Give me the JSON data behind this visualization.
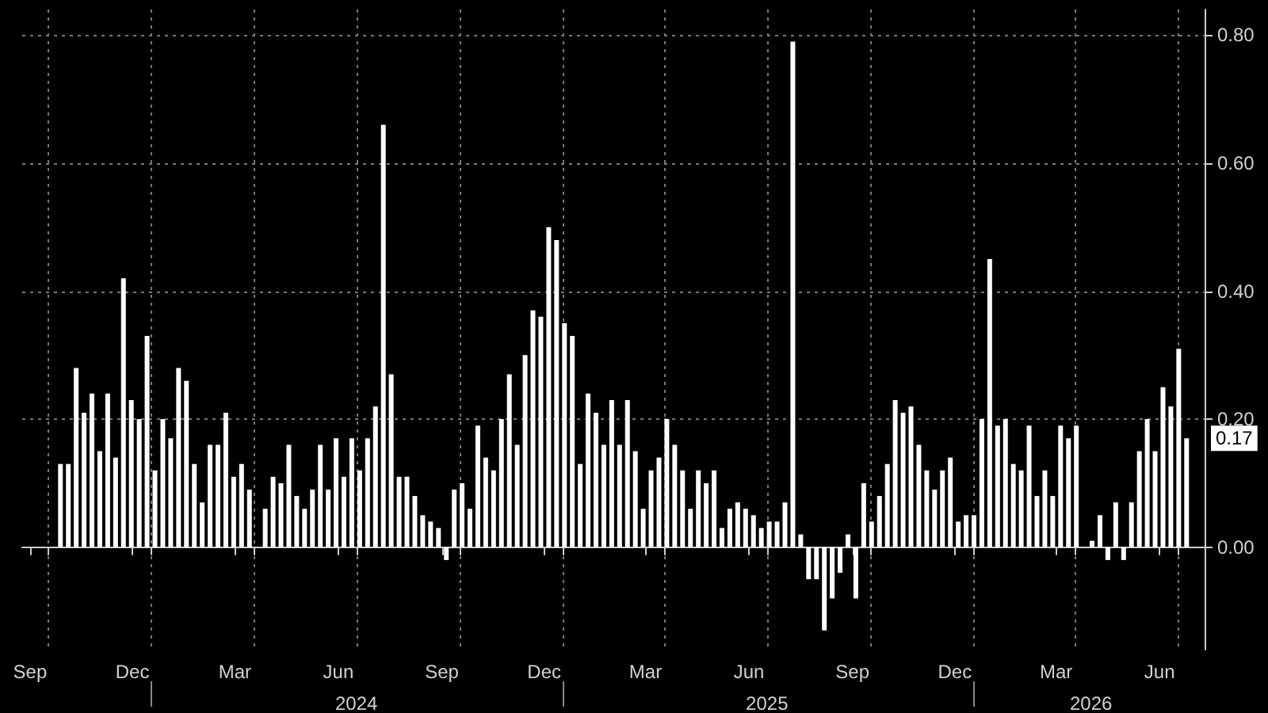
{
  "chart_data": {
    "type": "bar",
    "color": "#ffffff",
    "x": [
      "2023-10-12",
      "2023-10-19",
      "2023-10-26",
      "2023-11-02",
      "2023-11-09",
      "2023-11-16",
      "2023-11-23",
      "2023-11-30",
      "2023-12-07",
      "2023-12-14",
      "2023-12-21",
      "2023-12-28",
      "2024-01-04",
      "2024-01-11",
      "2024-01-18",
      "2024-01-25",
      "2024-02-01",
      "2024-02-08",
      "2024-02-15",
      "2024-02-22",
      "2024-02-29",
      "2024-03-07",
      "2024-03-14",
      "2024-03-21",
      "2024-03-28",
      "2024-04-04",
      "2024-04-11",
      "2024-04-18",
      "2024-04-25",
      "2024-05-02",
      "2024-05-09",
      "2024-05-16",
      "2024-05-23",
      "2024-05-30",
      "2024-06-06",
      "2024-06-13",
      "2024-06-20",
      "2024-06-27",
      "2024-07-04",
      "2024-07-11",
      "2024-07-18",
      "2024-07-25",
      "2024-08-01",
      "2024-08-08",
      "2024-08-15",
      "2024-08-22",
      "2024-08-29",
      "2024-09-05",
      "2024-09-12",
      "2024-09-19",
      "2024-09-26",
      "2024-10-03",
      "2024-10-10",
      "2024-10-17",
      "2024-10-24",
      "2024-10-31",
      "2024-11-07",
      "2024-11-14",
      "2024-11-21",
      "2024-11-28",
      "2024-12-05",
      "2024-12-12",
      "2024-12-19",
      "2024-12-26",
      "2025-01-02",
      "2025-01-09",
      "2025-01-16",
      "2025-01-23",
      "2025-01-30",
      "2025-02-06",
      "2025-02-13",
      "2025-02-20",
      "2025-02-27",
      "2025-03-06",
      "2025-03-13",
      "2025-03-20",
      "2025-03-27",
      "2025-04-03",
      "2025-04-10",
      "2025-04-17",
      "2025-04-24",
      "2025-05-01",
      "2025-05-08",
      "2025-05-15",
      "2025-05-22",
      "2025-05-29",
      "2025-06-05",
      "2025-06-12",
      "2025-06-19",
      "2025-06-26",
      "2025-07-03",
      "2025-07-10",
      "2025-07-17",
      "2025-07-24",
      "2025-07-31",
      "2025-08-07",
      "2025-08-14",
      "2025-08-21",
      "2025-08-28",
      "2025-09-04",
      "2025-09-11",
      "2025-09-18",
      "2025-09-25",
      "2025-10-02",
      "2025-10-09",
      "2025-10-16",
      "2025-10-23",
      "2025-10-30",
      "2025-11-06",
      "2025-11-13",
      "2025-11-20",
      "2025-11-27",
      "2025-12-04",
      "2025-12-11",
      "2025-12-18",
      "2025-12-25",
      "2026-01-01",
      "2026-01-08",
      "2026-01-15",
      "2026-01-22",
      "2026-01-29",
      "2026-02-05",
      "2026-02-12",
      "2026-02-19",
      "2026-02-26",
      "2026-03-05",
      "2026-03-12",
      "2026-03-19",
      "2026-03-26",
      "2026-04-02",
      "2026-04-09",
      "2026-04-16",
      "2026-04-23",
      "2026-04-30",
      "2026-05-07",
      "2026-05-14",
      "2026-05-21",
      "2026-05-28",
      "2026-06-04",
      "2026-06-11",
      "2026-06-18",
      "2026-06-25",
      "2026-07-02",
      "2026-07-09"
    ],
    "values": [
      0.13,
      0.13,
      0.28,
      0.21,
      0.24,
      0.15,
      0.24,
      0.14,
      0.42,
      0.23,
      0.2,
      0.33,
      0.12,
      0.2,
      0.17,
      0.28,
      0.26,
      0.13,
      0.07,
      0.16,
      0.16,
      0.21,
      0.11,
      0.13,
      0.09,
      0.0,
      0.06,
      0.11,
      0.1,
      0.16,
      0.08,
      0.06,
      0.09,
      0.16,
      0.09,
      0.17,
      0.11,
      0.17,
      0.12,
      0.17,
      0.22,
      0.66,
      0.27,
      0.11,
      0.11,
      0.08,
      0.05,
      0.04,
      0.03,
      -0.02,
      0.09,
      0.1,
      0.06,
      0.19,
      0.14,
      0.12,
      0.2,
      0.27,
      0.16,
      0.3,
      0.37,
      0.36,
      0.5,
      0.48,
      0.35,
      0.33,
      0.13,
      0.24,
      0.21,
      0.16,
      0.23,
      0.16,
      0.23,
      0.15,
      0.06,
      0.12,
      0.14,
      0.2,
      0.16,
      0.12,
      0.06,
      0.12,
      0.1,
      0.12,
      0.03,
      0.06,
      0.07,
      0.06,
      0.05,
      0.03,
      0.04,
      0.04,
      0.07,
      0.79,
      0.02,
      -0.05,
      -0.05,
      -0.13,
      -0.08,
      -0.04,
      0.02,
      -0.08,
      0.1,
      0.04,
      0.08,
      0.13,
      0.23,
      0.21,
      0.22,
      0.16,
      0.12,
      0.09,
      0.12,
      0.14,
      0.04,
      0.05,
      0.05,
      0.2,
      0.45,
      0.19,
      0.2,
      0.13,
      0.12,
      0.19,
      0.08,
      0.12,
      0.08,
      0.19,
      0.17,
      0.19,
      0.0,
      0.01,
      0.05,
      -0.02,
      0.07,
      -0.02,
      0.07,
      0.15,
      0.2,
      0.15,
      0.25,
      0.22,
      0.31,
      0.17
    ],
    "xlim": [
      "2023-09-08",
      "2026-07-25"
    ],
    "xticks": [
      {
        "value": "2023-09-15",
        "label": "Sep"
      },
      {
        "value": "2023-12-15",
        "label": "Dec"
      },
      {
        "value": "2024-03-15",
        "label": "Mar"
      },
      {
        "value": "2024-06-15",
        "label": "Jun"
      },
      {
        "value": "2024-09-15",
        "label": "Sep"
      },
      {
        "value": "2024-12-15",
        "label": "Dec"
      },
      {
        "value": "2025-03-15",
        "label": "Mar"
      },
      {
        "value": "2025-06-15",
        "label": "Jun"
      },
      {
        "value": "2025-09-15",
        "label": "Sep"
      },
      {
        "value": "2025-12-15",
        "label": "Dec"
      },
      {
        "value": "2026-03-15",
        "label": "Mar"
      },
      {
        "value": "2026-06-15",
        "label": "Jun"
      },
      {
        "value": "2023-10-01",
        "label": null
      },
      {
        "value": "2024-01-01",
        "label": null
      },
      {
        "value": "2024-04-01",
        "label": null
      },
      {
        "value": "2024-07-01",
        "label": null
      },
      {
        "value": "2024-10-01",
        "label": null
      },
      {
        "value": "2025-01-01",
        "label": null
      },
      {
        "value": "2025-04-01",
        "label": null
      },
      {
        "value": "2025-07-01",
        "label": null
      },
      {
        "value": "2025-10-01",
        "label": null
      },
      {
        "value": "2026-01-01",
        "label": null
      },
      {
        "value": "2026-04-01",
        "label": null
      },
      {
        "value": "2026-07-01",
        "label": null
      }
    ],
    "x2lim": [
      "2023-09-08",
      "2026-07-25"
    ],
    "x2ticks": [
      {
        "value": "2024-07-01",
        "label": "2024"
      },
      {
        "value": "2025-07-01",
        "label": "2025"
      },
      {
        "value": "2026-04-15",
        "label": "2026"
      },
      {
        "value": "2024-01-01",
        "label": null
      },
      {
        "value": "2025-01-01",
        "label": null
      },
      {
        "value": "2026-01-01",
        "label": null
      }
    ],
    "ylim": [
      -0.16,
      0.84
    ],
    "yticks": [
      {
        "value": 0,
        "label": "0.00"
      },
      {
        "value": 0.2,
        "label": "0.20"
      },
      {
        "value": 0.4,
        "label": "0.40"
      },
      {
        "value": 0.6,
        "label": "0.60"
      },
      {
        "value": 0.8,
        "label": "0.80"
      }
    ],
    "annotations": [
      "0.17"
    ],
    "grid": true
  }
}
